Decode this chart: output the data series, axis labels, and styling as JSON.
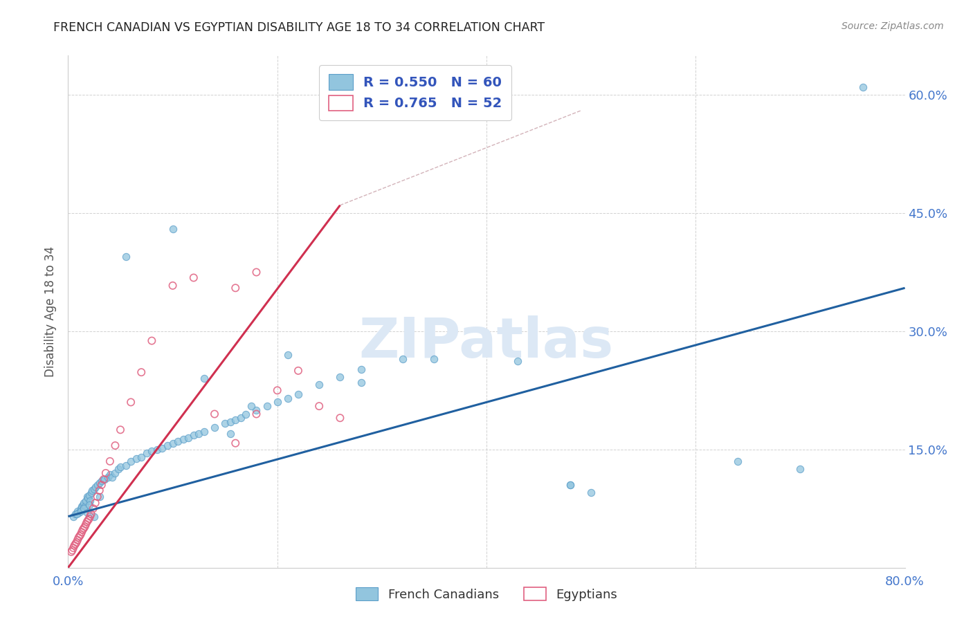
{
  "title": "FRENCH CANADIAN VS EGYPTIAN DISABILITY AGE 18 TO 34 CORRELATION CHART",
  "source": "Source: ZipAtlas.com",
  "ylabel": "Disability Age 18 to 34",
  "xlim": [
    0.0,
    0.8
  ],
  "ylim": [
    0.0,
    0.65
  ],
  "french_canadian_color": "#92c5de",
  "french_canadian_edge_color": "#5b9ec9",
  "egyptian_color": "#f4a0b0",
  "egyptian_edge_color": "#e06080",
  "french_canadian_line_color": "#2060a0",
  "egyptian_line_color": "#d03050",
  "watermark_color": "#dce8f5",
  "fc_trendline_x": [
    0.0,
    0.8
  ],
  "fc_trendline_y": [
    0.065,
    0.355
  ],
  "eg_trendline_x": [
    0.0,
    0.26
  ],
  "eg_trendline_y": [
    0.0,
    0.46
  ],
  "dash_line_x": [
    0.26,
    0.49
  ],
  "dash_line_y": [
    0.46,
    0.58
  ],
  "french_canadian_x": [
    0.005,
    0.007,
    0.009,
    0.01,
    0.012,
    0.013,
    0.014,
    0.015,
    0.016,
    0.017,
    0.018,
    0.019,
    0.02,
    0.021,
    0.022,
    0.023,
    0.025,
    0.026,
    0.028,
    0.03,
    0.032,
    0.035,
    0.038,
    0.04,
    0.042,
    0.045,
    0.048,
    0.05,
    0.055,
    0.06,
    0.065,
    0.07,
    0.075,
    0.08,
    0.085,
    0.09,
    0.095,
    0.1,
    0.105,
    0.11,
    0.115,
    0.12,
    0.125,
    0.13,
    0.14,
    0.15,
    0.155,
    0.16,
    0.165,
    0.17,
    0.18,
    0.19,
    0.2,
    0.21,
    0.22,
    0.24,
    0.26,
    0.28,
    0.32,
    0.48,
    0.76
  ],
  "french_canadian_y": [
    0.065,
    0.068,
    0.072,
    0.07,
    0.075,
    0.078,
    0.08,
    0.082,
    0.078,
    0.085,
    0.09,
    0.088,
    0.092,
    0.085,
    0.095,
    0.098,
    0.1,
    0.102,
    0.105,
    0.108,
    0.11,
    0.112,
    0.115,
    0.118,
    0.115,
    0.12,
    0.125,
    0.128,
    0.13,
    0.135,
    0.138,
    0.14,
    0.145,
    0.148,
    0.15,
    0.152,
    0.155,
    0.158,
    0.16,
    0.163,
    0.165,
    0.168,
    0.17,
    0.173,
    0.178,
    0.183,
    0.185,
    0.188,
    0.19,
    0.195,
    0.2,
    0.205,
    0.21,
    0.215,
    0.22,
    0.232,
    0.242,
    0.252,
    0.265,
    0.105,
    0.61
  ],
  "french_canadian_x2": [
    0.008,
    0.012,
    0.015,
    0.018,
    0.02,
    0.025,
    0.03,
    0.055,
    0.1,
    0.13,
    0.155,
    0.175,
    0.21,
    0.28,
    0.35,
    0.43,
    0.48,
    0.5,
    0.64,
    0.7
  ],
  "french_canadian_y2": [
    0.068,
    0.072,
    0.075,
    0.07,
    0.08,
    0.065,
    0.09,
    0.395,
    0.43,
    0.24,
    0.17,
    0.205,
    0.27,
    0.235,
    0.265,
    0.262,
    0.105,
    0.095,
    0.135,
    0.125
  ],
  "egyptian_x": [
    0.003,
    0.004,
    0.005,
    0.006,
    0.007,
    0.008,
    0.009,
    0.01,
    0.011,
    0.012,
    0.013,
    0.014,
    0.015,
    0.016,
    0.017,
    0.018,
    0.019,
    0.02,
    0.021,
    0.022,
    0.024,
    0.026,
    0.028,
    0.03,
    0.032,
    0.034,
    0.036,
    0.04,
    0.045,
    0.05,
    0.06,
    0.07,
    0.08,
    0.1,
    0.12,
    0.14,
    0.16,
    0.18,
    0.2,
    0.22,
    0.24,
    0.26,
    0.16,
    0.18
  ],
  "egyptian_y": [
    0.02,
    0.022,
    0.025,
    0.028,
    0.03,
    0.032,
    0.035,
    0.038,
    0.04,
    0.042,
    0.045,
    0.048,
    0.05,
    0.052,
    0.055,
    0.058,
    0.06,
    0.062,
    0.065,
    0.068,
    0.075,
    0.082,
    0.09,
    0.098,
    0.105,
    0.112,
    0.12,
    0.135,
    0.155,
    0.175,
    0.21,
    0.248,
    0.288,
    0.358,
    0.368,
    0.195,
    0.158,
    0.195,
    0.225,
    0.25,
    0.205,
    0.19,
    0.355,
    0.375
  ]
}
